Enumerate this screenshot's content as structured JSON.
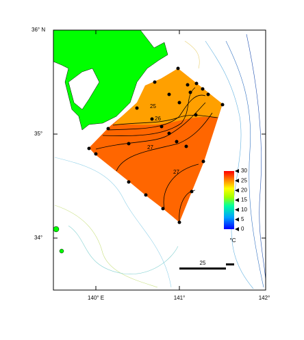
{
  "map": {
    "lat_labels": [
      "36° N",
      "35°",
      "34°"
    ],
    "lon_labels": [
      "140° E",
      "141°",
      "142°"
    ],
    "contour_labels": [
      "25",
      "26",
      "27",
      "27"
    ],
    "colorbar": {
      "ticks": [
        30,
        25,
        20,
        15,
        10,
        5,
        0
      ],
      "lim": [
        0,
        30
      ],
      "unit": "°C"
    },
    "scale_label": "25"
  }
}
